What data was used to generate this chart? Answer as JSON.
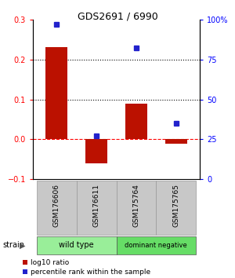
{
  "title": "GDS2691 / 6990",
  "samples": [
    "GSM176606",
    "GSM176611",
    "GSM175764",
    "GSM175765"
  ],
  "log10_ratio": [
    0.23,
    -0.06,
    0.09,
    -0.01
  ],
  "percentile_rank": [
    97,
    27,
    82,
    35
  ],
  "groups": [
    {
      "label": "wild type",
      "indices": [
        0,
        1
      ],
      "color": "#99EE99"
    },
    {
      "label": "dominant negative",
      "indices": [
        2,
        3
      ],
      "color": "#66DD66"
    }
  ],
  "ylim_left": [
    -0.1,
    0.3
  ],
  "ylim_right": [
    0,
    100
  ],
  "hlines_dotted": [
    0.1,
    0.2
  ],
  "hline_dashed": 0,
  "left_ticks": [
    -0.1,
    0,
    0.1,
    0.2,
    0.3
  ],
  "right_ticks": [
    0,
    25,
    50,
    75,
    100
  ],
  "right_tick_labels": [
    "0",
    "25",
    "50",
    "75",
    "100%"
  ],
  "bar_color": "#BB1100",
  "point_color": "#2222CC",
  "bar_width": 0.55,
  "legend_bar_label": "log10 ratio",
  "legend_point_label": "percentile rank within the sample",
  "strain_label": "strain",
  "sample_box_color": "#C8C8C8",
  "sample_box_edgecolor": "#999999",
  "title_fontsize": 9
}
